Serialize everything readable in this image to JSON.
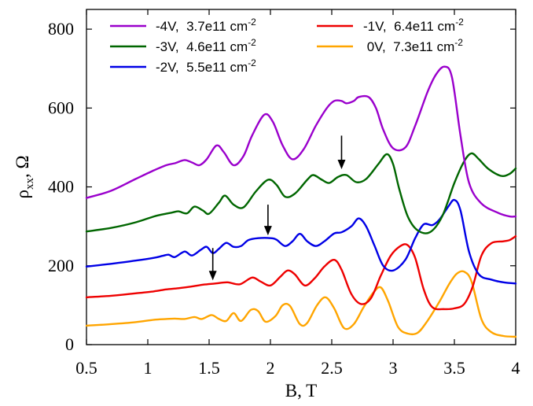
{
  "chart_data": {
    "type": "line",
    "xlabel": "B, T",
    "ylabel": "ρ",
    "ylabel_sub": "xx",
    "ylabel_unit": ", Ω",
    "xlim": [
      0.5,
      4.0
    ],
    "ylim": [
      0,
      850
    ],
    "xticks": [
      0.5,
      1,
      1.5,
      2,
      2.5,
      3,
      3.5,
      4
    ],
    "xtick_labels": [
      "0.5",
      "1",
      "1.5",
      "2",
      "2.5",
      "3",
      "3.5",
      "4"
    ],
    "yticks": [
      0,
      200,
      400,
      600,
      800
    ],
    "ytick_labels": [
      "0",
      "200",
      "400",
      "600",
      "800"
    ],
    "grid": false,
    "legend_position": "top",
    "series": [
      {
        "name": "-4V,  3.7e11 cm",
        "sup": "-2",
        "color": "#9a00cc",
        "points": [
          [
            0.5,
            372
          ],
          [
            0.7,
            390
          ],
          [
            0.9,
            420
          ],
          [
            1.05,
            442
          ],
          [
            1.15,
            455
          ],
          [
            1.22,
            460
          ],
          [
            1.3,
            468
          ],
          [
            1.36,
            462
          ],
          [
            1.42,
            455
          ],
          [
            1.48,
            470
          ],
          [
            1.56,
            505
          ],
          [
            1.62,
            488
          ],
          [
            1.7,
            455
          ],
          [
            1.78,
            478
          ],
          [
            1.85,
            530
          ],
          [
            1.95,
            583
          ],
          [
            2.02,
            565
          ],
          [
            2.1,
            505
          ],
          [
            2.18,
            470
          ],
          [
            2.27,
            495
          ],
          [
            2.37,
            555
          ],
          [
            2.46,
            600
          ],
          [
            2.52,
            618
          ],
          [
            2.58,
            618
          ],
          [
            2.62,
            612
          ],
          [
            2.68,
            618
          ],
          [
            2.72,
            628
          ],
          [
            2.8,
            628
          ],
          [
            2.86,
            600
          ],
          [
            2.92,
            545
          ],
          [
            3.0,
            498
          ],
          [
            3.1,
            500
          ],
          [
            3.18,
            555
          ],
          [
            3.28,
            640
          ],
          [
            3.35,
            685
          ],
          [
            3.42,
            705
          ],
          [
            3.48,
            678
          ],
          [
            3.55,
            530
          ],
          [
            3.62,
            410
          ],
          [
            3.72,
            358
          ],
          [
            3.85,
            335
          ],
          [
            3.95,
            325
          ],
          [
            4.0,
            325
          ]
        ]
      },
      {
        "name": "-3V,  4.6e11 cm",
        "sup": "-2",
        "color": "#006600",
        "points": [
          [
            0.5,
            287
          ],
          [
            0.7,
            296
          ],
          [
            0.9,
            310
          ],
          [
            1.05,
            325
          ],
          [
            1.15,
            332
          ],
          [
            1.2,
            335
          ],
          [
            1.25,
            338
          ],
          [
            1.32,
            333
          ],
          [
            1.38,
            350
          ],
          [
            1.45,
            340
          ],
          [
            1.5,
            332
          ],
          [
            1.58,
            360
          ],
          [
            1.63,
            378
          ],
          [
            1.7,
            355
          ],
          [
            1.78,
            348
          ],
          [
            1.88,
            388
          ],
          [
            1.98,
            418
          ],
          [
            2.05,
            405
          ],
          [
            2.12,
            375
          ],
          [
            2.2,
            383
          ],
          [
            2.3,
            418
          ],
          [
            2.35,
            430
          ],
          [
            2.42,
            418
          ],
          [
            2.48,
            410
          ],
          [
            2.55,
            425
          ],
          [
            2.62,
            430
          ],
          [
            2.7,
            412
          ],
          [
            2.78,
            420
          ],
          [
            2.88,
            458
          ],
          [
            2.95,
            483
          ],
          [
            3.0,
            458
          ],
          [
            3.05,
            395
          ],
          [
            3.12,
            325
          ],
          [
            3.2,
            290
          ],
          [
            3.3,
            285
          ],
          [
            3.4,
            325
          ],
          [
            3.5,
            410
          ],
          [
            3.58,
            465
          ],
          [
            3.64,
            485
          ],
          [
            3.7,
            470
          ],
          [
            3.78,
            445
          ],
          [
            3.88,
            428
          ],
          [
            3.95,
            433
          ],
          [
            4.0,
            447
          ]
        ]
      },
      {
        "name": "-2V,  5.5e11 cm",
        "sup": "-2",
        "color": "#0000e6",
        "points": [
          [
            0.5,
            198
          ],
          [
            0.7,
            205
          ],
          [
            0.9,
            213
          ],
          [
            1.05,
            220
          ],
          [
            1.12,
            225
          ],
          [
            1.17,
            228
          ],
          [
            1.22,
            222
          ],
          [
            1.3,
            236
          ],
          [
            1.36,
            226
          ],
          [
            1.43,
            240
          ],
          [
            1.48,
            248
          ],
          [
            1.53,
            232
          ],
          [
            1.58,
            243
          ],
          [
            1.64,
            258
          ],
          [
            1.7,
            248
          ],
          [
            1.76,
            250
          ],
          [
            1.82,
            265
          ],
          [
            1.9,
            270
          ],
          [
            2.0,
            270
          ],
          [
            2.05,
            266
          ],
          [
            2.12,
            250
          ],
          [
            2.18,
            262
          ],
          [
            2.24,
            281
          ],
          [
            2.3,
            262
          ],
          [
            2.37,
            250
          ],
          [
            2.44,
            262
          ],
          [
            2.52,
            282
          ],
          [
            2.58,
            285
          ],
          [
            2.66,
            300
          ],
          [
            2.72,
            320
          ],
          [
            2.78,
            300
          ],
          [
            2.85,
            250
          ],
          [
            2.92,
            200
          ],
          [
            3.0,
            188
          ],
          [
            3.1,
            215
          ],
          [
            3.18,
            270
          ],
          [
            3.25,
            305
          ],
          [
            3.32,
            303
          ],
          [
            3.38,
            318
          ],
          [
            3.45,
            350
          ],
          [
            3.5,
            367
          ],
          [
            3.55,
            340
          ],
          [
            3.62,
            235
          ],
          [
            3.7,
            178
          ],
          [
            3.8,
            165
          ],
          [
            3.9,
            158
          ],
          [
            4.0,
            155
          ]
        ]
      },
      {
        "name": "-1V,  6.4e11 cm",
        "sup": "-2",
        "color": "#ee0000",
        "points": [
          [
            0.5,
            120
          ],
          [
            0.7,
            124
          ],
          [
            0.9,
            130
          ],
          [
            1.05,
            135
          ],
          [
            1.15,
            140
          ],
          [
            1.25,
            143
          ],
          [
            1.35,
            147
          ],
          [
            1.45,
            152
          ],
          [
            1.55,
            155
          ],
          [
            1.65,
            158
          ],
          [
            1.75,
            153
          ],
          [
            1.85,
            170
          ],
          [
            1.92,
            160
          ],
          [
            2.0,
            150
          ],
          [
            2.08,
            172
          ],
          [
            2.14,
            188
          ],
          [
            2.2,
            178
          ],
          [
            2.28,
            150
          ],
          [
            2.36,
            168
          ],
          [
            2.44,
            198
          ],
          [
            2.52,
            215
          ],
          [
            2.58,
            190
          ],
          [
            2.66,
            128
          ],
          [
            2.74,
            103
          ],
          [
            2.82,
            118
          ],
          [
            2.9,
            175
          ],
          [
            2.98,
            225
          ],
          [
            3.06,
            250
          ],
          [
            3.12,
            252
          ],
          [
            3.18,
            220
          ],
          [
            3.25,
            140
          ],
          [
            3.32,
            95
          ],
          [
            3.42,
            90
          ],
          [
            3.5,
            92
          ],
          [
            3.58,
            103
          ],
          [
            3.65,
            148
          ],
          [
            3.72,
            225
          ],
          [
            3.8,
            257
          ],
          [
            3.9,
            262
          ],
          [
            3.95,
            265
          ],
          [
            4.0,
            275
          ]
        ]
      },
      {
        "name": " 0V,  7.3e11 cm",
        "sup": "-2",
        "color": "#ffa500",
        "points": [
          [
            0.5,
            48
          ],
          [
            0.7,
            52
          ],
          [
            0.9,
            57
          ],
          [
            1.05,
            63
          ],
          [
            1.15,
            65
          ],
          [
            1.22,
            66
          ],
          [
            1.3,
            65
          ],
          [
            1.38,
            70
          ],
          [
            1.44,
            65
          ],
          [
            1.52,
            75
          ],
          [
            1.58,
            65
          ],
          [
            1.64,
            60
          ],
          [
            1.7,
            80
          ],
          [
            1.76,
            60
          ],
          [
            1.84,
            88
          ],
          [
            1.9,
            85
          ],
          [
            1.96,
            58
          ],
          [
            2.04,
            72
          ],
          [
            2.1,
            100
          ],
          [
            2.16,
            98
          ],
          [
            2.24,
            52
          ],
          [
            2.3,
            55
          ],
          [
            2.38,
            100
          ],
          [
            2.45,
            120
          ],
          [
            2.52,
            92
          ],
          [
            2.6,
            42
          ],
          [
            2.68,
            52
          ],
          [
            2.76,
            95
          ],
          [
            2.84,
            132
          ],
          [
            2.9,
            145
          ],
          [
            2.96,
            110
          ],
          [
            3.04,
            45
          ],
          [
            3.12,
            28
          ],
          [
            3.2,
            30
          ],
          [
            3.28,
            60
          ],
          [
            3.38,
            110
          ],
          [
            3.46,
            155
          ],
          [
            3.52,
            180
          ],
          [
            3.58,
            185
          ],
          [
            3.64,
            160
          ],
          [
            3.72,
            65
          ],
          [
            3.8,
            32
          ],
          [
            3.9,
            22
          ],
          [
            4.0,
            20
          ]
        ]
      }
    ],
    "annotations": [
      {
        "type": "arrow",
        "x": 2.58,
        "y_from": 530,
        "y_to": 445
      },
      {
        "type": "arrow",
        "x": 1.98,
        "y_from": 355,
        "y_to": 277
      },
      {
        "type": "arrow",
        "x": 1.53,
        "y_from": 245,
        "y_to": 163
      }
    ]
  }
}
